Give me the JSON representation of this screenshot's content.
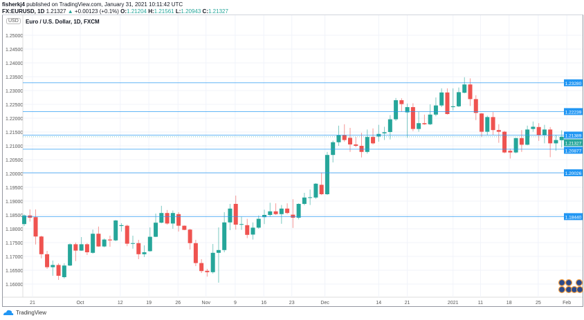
{
  "header": {
    "publisher": "fisherkj4",
    "published_text": "published on TradingView.com, January 31, 2021 10:11:42 UTC",
    "symbol": "FX:EURUSD, 1D",
    "last": "1.21327",
    "change": "+0.00123 (+0.1%)",
    "o_label": "O:",
    "o": "1.21204",
    "h_label": "H:",
    "h": "1.21561",
    "l_label": "L:",
    "l": "1.20943",
    "c_label": "C:",
    "c": "1.21327"
  },
  "chart_title": "Euro / U.S. Dollar, 1D, FXCM",
  "currency_badge": "USD",
  "brand": "TradingView",
  "colors": {
    "up": "#26a69a",
    "down": "#ef5350",
    "level": "#2196f3",
    "grid": "#f0f3fa"
  },
  "chart_data": {
    "type": "candlestick",
    "title": "Euro / U.S. Dollar, 1D, FXCM",
    "ylim": [
      1.1575,
      1.2575
    ],
    "y_ticks": [
      "1.25000",
      "1.24500",
      "1.24000",
      "1.23500",
      "1.23000",
      "1.22500",
      "1.22000",
      "1.21500",
      "1.21000",
      "1.20500",
      "1.20000",
      "1.19500",
      "1.19000",
      "1.18500",
      "1.18000",
      "1.17500",
      "1.17000",
      "1.16500",
      "1.16000"
    ],
    "x_ticks": [
      {
        "label": "21",
        "i": 2.45
      },
      {
        "label": "Oct",
        "i": 10.8
      },
      {
        "label": "12",
        "i": 17.8
      },
      {
        "label": "19",
        "i": 22.8
      },
      {
        "label": "26",
        "i": 27.9
      },
      {
        "label": "Nov",
        "i": 32.8
      },
      {
        "label": "9",
        "i": 37.9
      },
      {
        "label": "16",
        "i": 42.9
      },
      {
        "label": "23",
        "i": 47.8
      },
      {
        "label": "Dec",
        "i": 53.6
      },
      {
        "label": "14",
        "i": 63
      },
      {
        "label": "21",
        "i": 68
      },
      {
        "label": "2021",
        "i": 76
      },
      {
        "label": "11",
        "i": 80.8
      },
      {
        "label": "18",
        "i": 85.8
      },
      {
        "label": "25",
        "i": 90.9
      },
      {
        "label": "Feb",
        "i": 95.9
      }
    ],
    "levels": [
      "1.23280",
      "1.22239",
      "1.21389",
      "1.20877",
      "1.20026",
      "1.18440"
    ],
    "current_price": "1.21327",
    "ohlc": [
      [
        1.1817,
        1.1852,
        1.181,
        1.1848
      ],
      [
        1.1848,
        1.187,
        1.1826,
        1.184
      ],
      [
        1.1842,
        1.187,
        1.1743,
        1.1772
      ],
      [
        1.1772,
        1.1775,
        1.1693,
        1.1708
      ],
      [
        1.1708,
        1.172,
        1.1655,
        1.1661
      ],
      [
        1.1661,
        1.1685,
        1.163,
        1.1669
      ],
      [
        1.1669,
        1.1675,
        1.1615,
        1.163
      ],
      [
        1.1625,
        1.1675,
        1.162,
        1.1667
      ],
      [
        1.1667,
        1.1747,
        1.1665,
        1.1744
      ],
      [
        1.1744,
        1.175,
        1.1683,
        1.1721
      ],
      [
        1.1721,
        1.177,
        1.172,
        1.1744
      ],
      [
        1.1744,
        1.1748,
        1.1705,
        1.1715
      ],
      [
        1.1713,
        1.1797,
        1.171,
        1.1782
      ],
      [
        1.1782,
        1.1808,
        1.1735,
        1.1736
      ],
      [
        1.1736,
        1.1765,
        1.1733,
        1.1761
      ],
      [
        1.1761,
        1.1775,
        1.1735,
        1.1758
      ],
      [
        1.1758,
        1.1832,
        1.1755,
        1.183
      ],
      [
        1.181,
        1.182,
        1.179,
        1.1813
      ],
      [
        1.1811,
        1.1815,
        1.1737,
        1.1746
      ],
      [
        1.1746,
        1.1775,
        1.1728,
        1.1748
      ],
      [
        1.1748,
        1.176,
        1.169,
        1.1708
      ],
      [
        1.1708,
        1.174,
        1.1698,
        1.1715
      ],
      [
        1.1719,
        1.1805,
        1.1717,
        1.1771
      ],
      [
        1.1771,
        1.1855,
        1.177,
        1.1822
      ],
      [
        1.1822,
        1.1883,
        1.182,
        1.1857
      ],
      [
        1.1857,
        1.1868,
        1.1815,
        1.1819
      ],
      [
        1.1819,
        1.1866,
        1.18,
        1.1857
      ],
      [
        1.1853,
        1.186,
        1.179,
        1.1811
      ],
      [
        1.1811,
        1.1812,
        1.1795,
        1.1796
      ],
      [
        1.1797,
        1.18,
        1.1725,
        1.1748
      ],
      [
        1.1748,
        1.176,
        1.1665,
        1.1676
      ],
      [
        1.1676,
        1.169,
        1.164,
        1.1647
      ],
      [
        1.1648,
        1.1655,
        1.1627,
        1.1643
      ],
      [
        1.1643,
        1.1745,
        1.1638,
        1.1713
      ],
      [
        1.1713,
        1.1805,
        1.1605,
        1.1723
      ],
      [
        1.1723,
        1.186,
        1.1715,
        1.1823
      ],
      [
        1.1823,
        1.189,
        1.1795,
        1.1873
      ],
      [
        1.189,
        1.192,
        1.1797,
        1.1815
      ],
      [
        1.1815,
        1.1844,
        1.1796,
        1.1817
      ],
      [
        1.1813,
        1.1836,
        1.1766,
        1.1778
      ],
      [
        1.1779,
        1.1823,
        1.1761,
        1.1804
      ],
      [
        1.1804,
        1.1848,
        1.18,
        1.1836
      ],
      [
        1.1842,
        1.1869,
        1.1817,
        1.185
      ],
      [
        1.185,
        1.1894,
        1.1844,
        1.1863
      ],
      [
        1.1863,
        1.1892,
        1.185,
        1.1853
      ],
      [
        1.1853,
        1.1886,
        1.1818,
        1.1873
      ],
      [
        1.1873,
        1.1892,
        1.1853,
        1.1857
      ],
      [
        1.1851,
        1.1907,
        1.1803,
        1.184
      ],
      [
        1.184,
        1.1892,
        1.1834,
        1.189
      ],
      [
        1.189,
        1.193,
        1.1885,
        1.1913
      ],
      [
        1.1913,
        1.1942,
        1.1886,
        1.1914
      ],
      [
        1.1913,
        1.1965,
        1.1908,
        1.1963
      ],
      [
        1.1959,
        1.2003,
        1.1922,
        1.1925
      ],
      [
        1.1925,
        1.2078,
        1.1922,
        1.2067
      ],
      [
        1.2067,
        1.2119,
        1.204,
        1.2113
      ],
      [
        1.2113,
        1.2173,
        1.21,
        1.2139
      ],
      [
        1.2139,
        1.2178,
        1.2115,
        1.2121
      ],
      [
        1.2129,
        1.2165,
        1.2078,
        1.2105
      ],
      [
        1.2105,
        1.2132,
        1.2095,
        1.21
      ],
      [
        1.21,
        1.2147,
        1.2058,
        1.2078
      ],
      [
        1.2078,
        1.2159,
        1.2072,
        1.2132
      ],
      [
        1.2132,
        1.2163,
        1.2105,
        1.2109
      ],
      [
        1.2134,
        1.2176,
        1.2115,
        1.2143
      ],
      [
        1.2145,
        1.2169,
        1.2121,
        1.2149
      ],
      [
        1.215,
        1.2211,
        1.2123,
        1.2196
      ],
      [
        1.2196,
        1.2273,
        1.219,
        1.2265
      ],
      [
        1.2265,
        1.2272,
        1.2223,
        1.2251
      ],
      [
        1.2221,
        1.2253,
        1.2129,
        1.224
      ],
      [
        1.224,
        1.2254,
        1.2153,
        1.2161
      ],
      [
        1.2161,
        1.2223,
        1.2151,
        1.2182
      ],
      [
        1.2182,
        1.2213,
        1.2176,
        1.2178
      ],
      [
        1.2178,
        1.225,
        1.2175,
        1.2213
      ],
      [
        1.2213,
        1.2275,
        1.2207,
        1.2246
      ],
      [
        1.2246,
        1.2308,
        1.224,
        1.2293
      ],
      [
        1.2293,
        1.2308,
        1.2213,
        1.2215
      ],
      [
        1.224,
        1.2308,
        1.2228,
        1.2243
      ],
      [
        1.2243,
        1.2311,
        1.224,
        1.2294
      ],
      [
        1.2292,
        1.2348,
        1.229,
        1.2322
      ],
      [
        1.2322,
        1.2344,
        1.2244,
        1.2269
      ],
      [
        1.2269,
        1.2283,
        1.2193,
        1.2219
      ],
      [
        1.2217,
        1.2219,
        1.2132,
        1.2151
      ],
      [
        1.2151,
        1.2209,
        1.2138,
        1.2204
      ],
      [
        1.2204,
        1.2222,
        1.214,
        1.2157
      ],
      [
        1.2157,
        1.2178,
        1.2111,
        1.2151
      ],
      [
        1.2151,
        1.2154,
        1.2073,
        1.2076
      ],
      [
        1.2082,
        1.209,
        1.2054,
        1.2076
      ],
      [
        1.2076,
        1.2129,
        1.2073,
        1.2128
      ],
      [
        1.2128,
        1.2157,
        1.2078,
        1.2104
      ],
      [
        1.2104,
        1.2173,
        1.2102,
        1.2159
      ],
      [
        1.2161,
        1.2188,
        1.2151,
        1.2169
      ],
      [
        1.2168,
        1.2182,
        1.2118,
        1.2138
      ],
      [
        1.2138,
        1.2176,
        1.2109,
        1.2159
      ],
      [
        1.2159,
        1.2168,
        1.2059,
        1.2109
      ],
      [
        1.2109,
        1.214,
        1.2082,
        1.2121
      ],
      [
        1.21204,
        1.21561,
        1.20943,
        1.21327
      ]
    ]
  }
}
